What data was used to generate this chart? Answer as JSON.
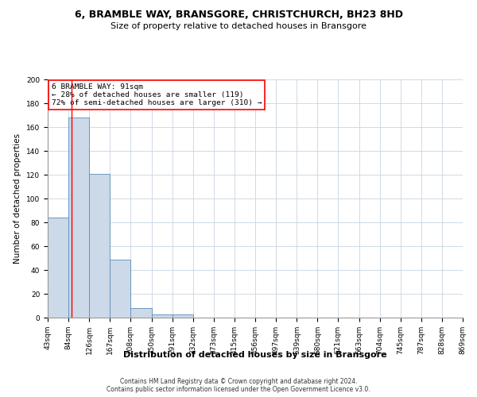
{
  "title1": "6, BRAMBLE WAY, BRANSGORE, CHRISTCHURCH, BH23 8HD",
  "title2": "Size of property relative to detached houses in Bransgore",
  "xlabel": "Distribution of detached houses by size in Bransgore",
  "ylabel": "Number of detached properties",
  "footnote": "Contains HM Land Registry data © Crown copyright and database right 2024.\nContains public sector information licensed under the Open Government Licence v3.0.",
  "bar_values": [
    84,
    168,
    121,
    49,
    8,
    3,
    3,
    0,
    0,
    0,
    0,
    0,
    0,
    0,
    0,
    0,
    0,
    0,
    0,
    0
  ],
  "bin_edges": [
    43,
    84,
    126,
    167,
    208,
    250,
    291,
    332,
    373,
    415,
    456,
    497,
    539,
    580,
    621,
    663,
    704,
    745,
    787,
    828,
    869
  ],
  "bar_color": "#ccd9e8",
  "bar_edge_color": "#5b8db8",
  "grid_color": "#c8d4e0",
  "annotation_text": "6 BRAMBLE WAY: 91sqm\n← 28% of detached houses are smaller (119)\n72% of semi-detached houses are larger (310) →",
  "annotation_box_color": "white",
  "annotation_box_edge_color": "red",
  "vline_x": 91,
  "vline_color": "red",
  "ylim": [
    0,
    200
  ],
  "yticks": [
    0,
    20,
    40,
    60,
    80,
    100,
    120,
    140,
    160,
    180,
    200
  ],
  "background_color": "white",
  "title1_fontsize": 9,
  "title2_fontsize": 8,
  "ylabel_fontsize": 7.5,
  "xlabel_fontsize": 8,
  "tick_fontsize": 6.5,
  "footnote_fontsize": 5.5
}
